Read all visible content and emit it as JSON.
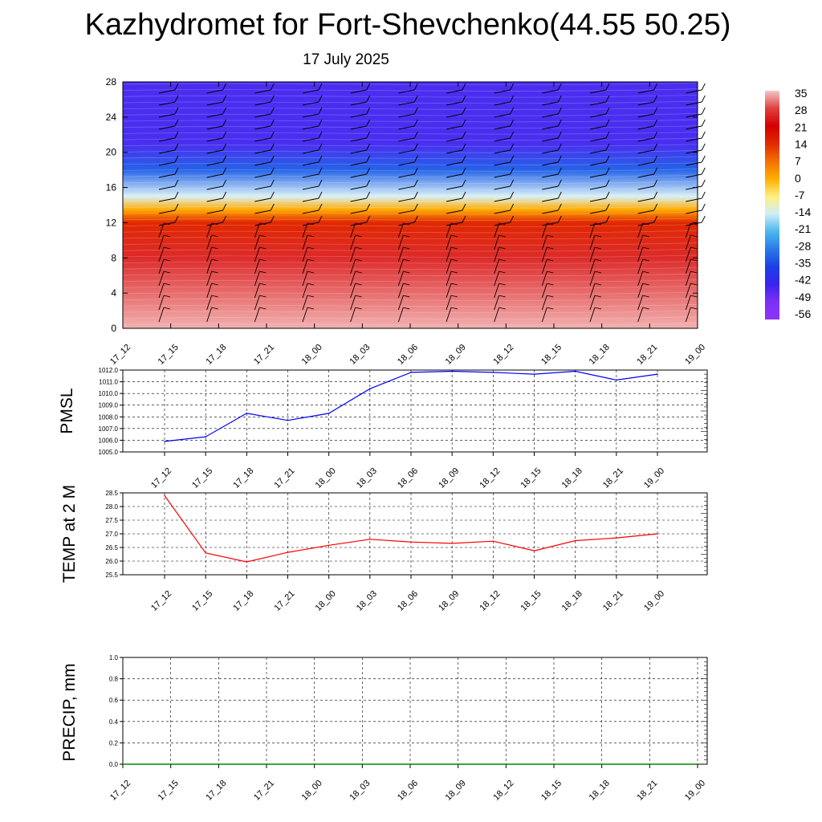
{
  "title": "Kazhydromet for Fort-Shevchenko(44.55 50.25)",
  "subtitle": "17 July 2025",
  "colorbar": {
    "labels": [
      "35",
      "28",
      "21",
      "14",
      "7",
      "0",
      "-7",
      "-14",
      "-21",
      "-28",
      "-35",
      "-42",
      "-49",
      "-56"
    ],
    "colors": [
      "#f7c6c6",
      "#e8434a",
      "#d00000",
      "#e84a00",
      "#ff8c00",
      "#ffc21a",
      "#fff7a0",
      "#c8ecf7",
      "#42b6ec",
      "#2f74e8",
      "#1432e6",
      "#5a2cf0",
      "#8833ff"
    ]
  },
  "chart_data": [
    {
      "type": "heatmap",
      "name": "cross-section",
      "x_ticks": [
        "17_12",
        "17_15",
        "17_18",
        "17_21",
        "18_00",
        "18_03",
        "18_06",
        "18_09",
        "18_12",
        "18_15",
        "18_18",
        "18_21",
        "19_00"
      ],
      "y_ticks": [
        "0",
        "4",
        "8",
        "12",
        "16",
        "20",
        "24",
        "28"
      ],
      "ylim": [
        0,
        28
      ],
      "temperature_bands": [
        {
          "y": 0,
          "value": 35
        },
        {
          "y": 8,
          "value": 21
        },
        {
          "y": 12,
          "value": 7
        },
        {
          "y": 13.5,
          "value": -7
        },
        {
          "y": 15,
          "value": -21
        },
        {
          "y": 18,
          "value": -42
        },
        {
          "y": 21,
          "value": -56
        },
        {
          "y": 23,
          "value": -56
        },
        {
          "y": 28,
          "value": -56
        }
      ]
    },
    {
      "type": "line",
      "name": "PMSL",
      "ylabel": "PMSL",
      "ylim": [
        1005.0,
        1012.0
      ],
      "y_ticks": [
        "1012.0",
        "1011.0",
        "1010.0",
        "1009.0",
        "1008.0",
        "1007.0",
        "1006.0",
        "1005.0"
      ],
      "categories": [
        "17_12",
        "17_15",
        "17_18",
        "17_21",
        "18_00",
        "18_03",
        "18_06",
        "18_09",
        "18_12",
        "18_15",
        "18_18",
        "18_21",
        "19_00"
      ],
      "values": [
        1005.9,
        1006.3,
        1008.3,
        1007.7,
        1008.3,
        1010.4,
        1011.8,
        1011.9,
        1011.8,
        1011.65,
        1011.9,
        1011.15,
        1011.65
      ],
      "color": "#0000ff"
    },
    {
      "type": "line",
      "name": "TEMP",
      "ylabel": "TEMP at 2 M",
      "ylim": [
        25.5,
        28.5
      ],
      "y_ticks": [
        "28.5",
        "28.0",
        "27.5",
        "27.0",
        "26.5",
        "26.0",
        "25.5"
      ],
      "categories": [
        "17_12",
        "17_15",
        "17_18",
        "17_21",
        "18_00",
        "18_03",
        "18_06",
        "18_09",
        "18_12",
        "18_15",
        "18_18",
        "18_21",
        "19_00"
      ],
      "values": [
        28.4,
        26.3,
        25.97,
        26.32,
        26.58,
        26.8,
        26.7,
        26.65,
        26.73,
        26.38,
        26.75,
        26.85,
        27.0
      ],
      "color": "#ff0000"
    },
    {
      "type": "line",
      "name": "PRECIP",
      "ylabel": "PRECIP, mm",
      "ylim": [
        0.0,
        1.0
      ],
      "y_ticks": [
        "1.0",
        "0.8",
        "0.6",
        "0.4",
        "0.2",
        "0.0"
      ],
      "categories": [
        "17_12",
        "17_15",
        "17_18",
        "17_21",
        "18_00",
        "18_03",
        "18_06",
        "18_09",
        "18_12",
        "18_15",
        "18_18",
        "18_21",
        "19_00"
      ],
      "values": [
        0,
        0,
        0,
        0,
        0,
        0,
        0,
        0,
        0,
        0,
        0,
        0,
        0
      ],
      "color": "#008800"
    }
  ]
}
